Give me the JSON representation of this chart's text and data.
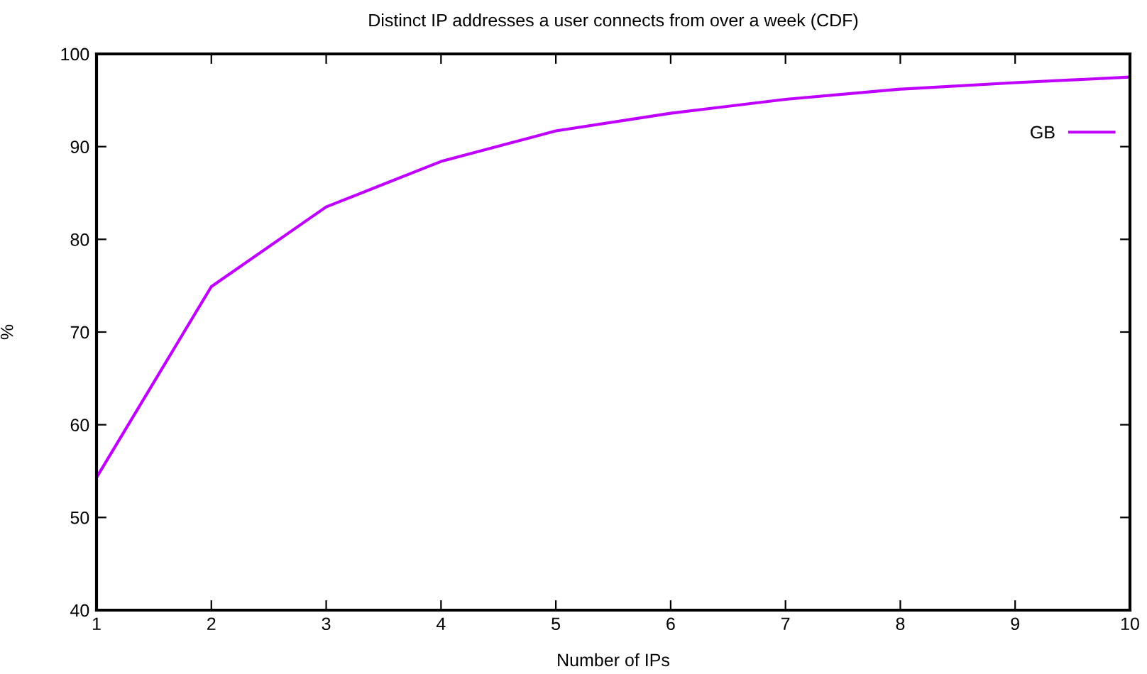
{
  "chart_data": {
    "type": "line",
    "title": "Distinct IP addresses a user connects from over a week (CDF)",
    "xlabel": "Number of IPs",
    "ylabel": "%",
    "x": [
      1,
      2,
      3,
      4,
      5,
      6,
      7,
      8,
      9,
      10
    ],
    "series": [
      {
        "name": "GB",
        "color": "#c000ff",
        "values": [
          54.3,
          74.9,
          83.5,
          88.4,
          91.7,
          93.6,
          95.1,
          96.2,
          96.9,
          97.5
        ]
      }
    ],
    "xlim": [
      1,
      10
    ],
    "xticks": [
      1,
      2,
      3,
      4,
      5,
      6,
      7,
      8,
      9,
      10
    ],
    "ylim": [
      40,
      100
    ],
    "yticks": [
      40,
      50,
      60,
      70,
      80,
      90,
      100
    ],
    "grid": false,
    "legend": "top right",
    "marker": "none",
    "line_style": "solid"
  }
}
